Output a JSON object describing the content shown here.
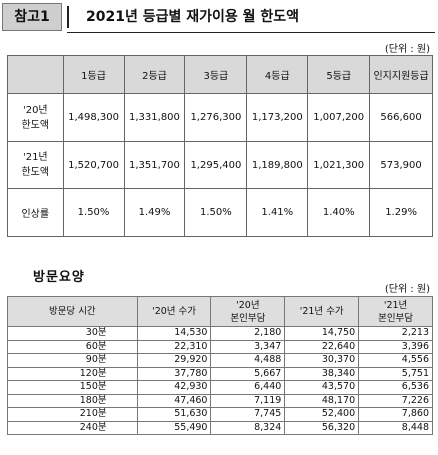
{
  "header": {
    "badge": "참고1",
    "title": "2021년 등급별 재가이용 월 한도액"
  },
  "limit_table": {
    "unit": "(단위 : 원)",
    "columns": [
      "1등급",
      "2등급",
      "3등급",
      "4등급",
      "5등급",
      "인지지원등급"
    ],
    "rows": [
      {
        "label_line1": "'20년",
        "label_line2": "한도액",
        "values": [
          "1,498,300",
          "1,331,800",
          "1,276,300",
          "1,173,200",
          "1,007,200",
          "566,600"
        ]
      },
      {
        "label_line1": "'21년",
        "label_line2": "한도액",
        "values": [
          "1,520,700",
          "1,351,700",
          "1,295,400",
          "1,189,800",
          "1,021,300",
          "573,900"
        ]
      },
      {
        "label_line1": "인상률",
        "label_line2": "",
        "values": [
          "1.50%",
          "1.49%",
          "1.50%",
          "1.41%",
          "1.40%",
          "1.29%"
        ]
      }
    ]
  },
  "visit_section": {
    "title": "방문요양",
    "unit": "(단위 : 원)",
    "headers": {
      "time": "방문당 시간",
      "fee20": "'20년 수가",
      "copay20_line1": "'20년",
      "copay20_line2": "본인부담",
      "fee21": "'21년 수가",
      "copay21_line1": "'21년",
      "copay21_line2": "본인부담"
    },
    "rows": [
      {
        "time": "30분",
        "fee20": "14,530",
        "copay20": "2,180",
        "fee21": "14,750",
        "copay21": "2,213"
      },
      {
        "time": "60분",
        "fee20": "22,310",
        "copay20": "3,347",
        "fee21": "22,640",
        "copay21": "3,396"
      },
      {
        "time": "90분",
        "fee20": "29,920",
        "copay20": "4,488",
        "fee21": "30,370",
        "copay21": "4,556"
      },
      {
        "time": "120분",
        "fee20": "37,780",
        "copay20": "5,667",
        "fee21": "38,340",
        "copay21": "5,751"
      },
      {
        "time": "150분",
        "fee20": "42,930",
        "copay20": "6,440",
        "fee21": "43,570",
        "copay21": "6,536"
      },
      {
        "time": "180분",
        "fee20": "47,460",
        "copay20": "7,119",
        "fee21": "48,170",
        "copay21": "7,226"
      },
      {
        "time": "210분",
        "fee20": "51,630",
        "copay20": "7,745",
        "fee21": "52,400",
        "copay21": "7,860"
      },
      {
        "time": "240분",
        "fee20": "55,490",
        "copay20": "8,324",
        "fee21": "56,320",
        "copay21": "8,448"
      }
    ]
  }
}
